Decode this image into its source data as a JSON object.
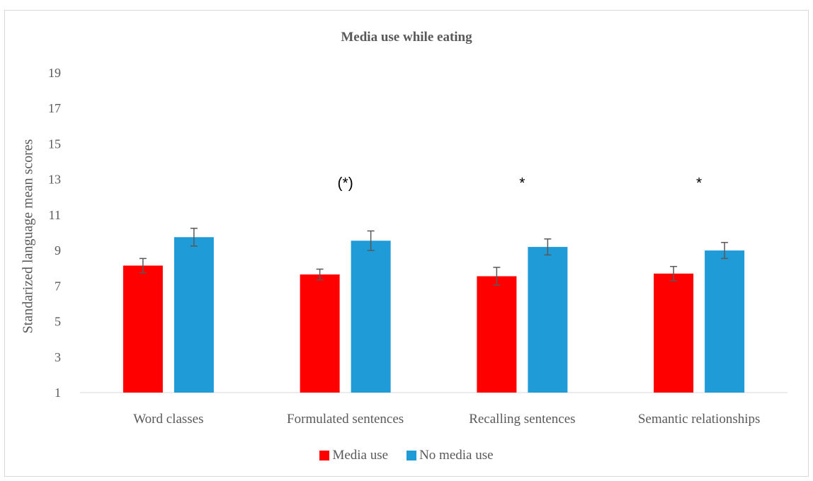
{
  "chart_data": {
    "type": "bar",
    "title": "Media use while eating",
    "xlabel": "",
    "ylabel": "Standarized language mean scores",
    "ylim": [
      1,
      19
    ],
    "yticks": [
      1,
      3,
      5,
      7,
      9,
      11,
      13,
      15,
      17,
      19
    ],
    "categories": [
      "Word classes",
      "Formulated sentences",
      "Recalling sentences",
      "Semantic relationships"
    ],
    "series": [
      {
        "name": "Media use",
        "color": "#ff0000",
        "values": [
          8.15,
          7.65,
          7.55,
          7.7
        ],
        "errors": [
          0.4,
          0.3,
          0.5,
          0.4
        ]
      },
      {
        "name": "No media use",
        "color": "#1f9bd7",
        "values": [
          9.75,
          9.55,
          9.2,
          9.0
        ],
        "errors": [
          0.5,
          0.55,
          0.45,
          0.45
        ]
      }
    ],
    "annotations": [
      "",
      "(*)",
      "*",
      "*"
    ],
    "legend_position": "bottom",
    "grid": false
  }
}
